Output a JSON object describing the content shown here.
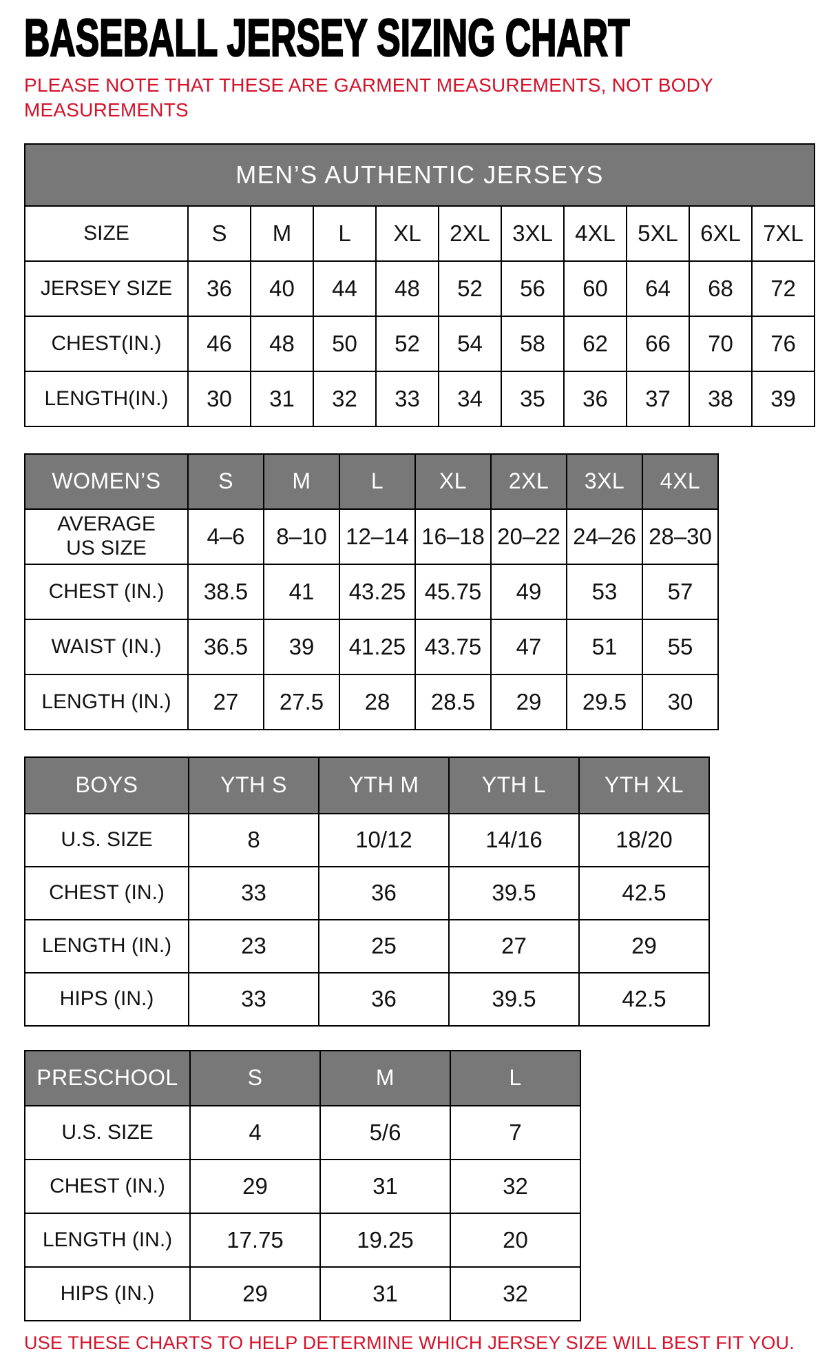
{
  "page": {
    "title": "BASEBALL JERSEY SIZING CHART",
    "note_lines": [
      "PLEASE NOTE THAT THESE ARE GARMENT MEASUREMENTS, NOT BODY",
      "MEASUREMENTS"
    ],
    "footer": "USE THESE CHARTS TO HELP DETERMINE WHICH JERSEY SIZE WILL BEST FIT YOU.",
    "colors": {
      "accent_red": "#d4122a",
      "header_gray": "#787878",
      "table_border": "#000000"
    }
  },
  "tables": {
    "mens": {
      "caption": "MEN’S AUTHENTIC JERSEYS",
      "rows": [
        {
          "label": "SIZE",
          "values": [
            "S",
            "M",
            "L",
            "XL",
            "2XL",
            "3XL",
            "4XL",
            "5XL",
            "6XL",
            "7XL"
          ]
        },
        {
          "label": "JERSEY SIZE",
          "values": [
            "36",
            "40",
            "44",
            "48",
            "52",
            "56",
            "60",
            "64",
            "68",
            "72"
          ]
        },
        {
          "label": "CHEST(IN.)",
          "values": [
            "46",
            "48",
            "50",
            "52",
            "54",
            "58",
            "62",
            "66",
            "70",
            "76"
          ]
        },
        {
          "label": "LENGTH(IN.)",
          "values": [
            "30",
            "31",
            "32",
            "33",
            "34",
            "35",
            "36",
            "37",
            "38",
            "39"
          ]
        }
      ]
    },
    "womens": {
      "corner_label": "WOMEN’S",
      "columns": [
        "S",
        "M",
        "L",
        "XL",
        "2XL",
        "3XL",
        "4XL"
      ],
      "rows": [
        {
          "label": "AVERAGE\nUS SIZE",
          "values": [
            "4–6",
            "8–10",
            "12–14",
            "16–18",
            "20–22",
            "24–26",
            "28–30"
          ]
        },
        {
          "label": "CHEST (IN.)",
          "values": [
            "38.5",
            "41",
            "43.25",
            "45.75",
            "49",
            "53",
            "57"
          ]
        },
        {
          "label": "WAIST (IN.)",
          "values": [
            "36.5",
            "39",
            "41.25",
            "43.75",
            "47",
            "51",
            "55"
          ]
        },
        {
          "label": "LENGTH (IN.)",
          "values": [
            "27",
            "27.5",
            "28",
            "28.5",
            "29",
            "29.5",
            "30"
          ]
        }
      ]
    },
    "boys": {
      "corner_label": "BOYS",
      "columns": [
        "YTH S",
        "YTH M",
        "YTH L",
        "YTH XL"
      ],
      "rows": [
        {
          "label": "U.S. SIZE",
          "values": [
            "8",
            "10/12",
            "14/16",
            "18/20"
          ]
        },
        {
          "label": "CHEST (IN.)",
          "values": [
            "33",
            "36",
            "39.5",
            "42.5"
          ]
        },
        {
          "label": "LENGTH (IN.)",
          "values": [
            "23",
            "25",
            "27",
            "29"
          ]
        },
        {
          "label": "HIPS (IN.)",
          "values": [
            "33",
            "36",
            "39.5",
            "42.5"
          ]
        }
      ]
    },
    "preschool": {
      "corner_label": "PRESCHOOL",
      "columns": [
        "S",
        "M",
        "L"
      ],
      "rows": [
        {
          "label": "U.S. SIZE",
          "values": [
            "4",
            "5/6",
            "7"
          ]
        },
        {
          "label": "CHEST (IN.)",
          "values": [
            "29",
            "31",
            "32"
          ]
        },
        {
          "label": "LENGTH (IN.)",
          "values": [
            "17.75",
            "19.25",
            "20"
          ]
        },
        {
          "label": "HIPS (IN.)",
          "values": [
            "29",
            "31",
            "32"
          ]
        }
      ]
    }
  }
}
